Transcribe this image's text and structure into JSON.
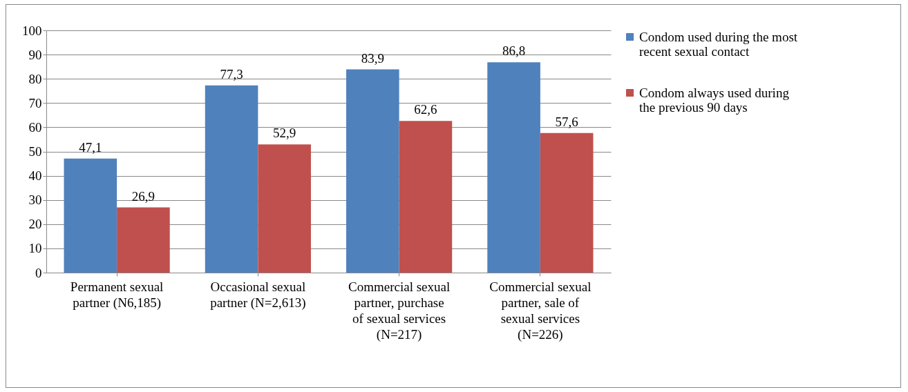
{
  "chart_data": {
    "type": "bar",
    "categories": [
      "Permanent sexual partner (N6,185)",
      "Occasional sexual partner (N=2,613)",
      "Commercial sexual partner, purchase of sexual services (N=217)",
      "Commercial sexual partner, sale of sexual services (N=226)"
    ],
    "series": [
      {
        "name": "Condom used during the most recent sexual contact",
        "color": "#4f81bd",
        "values": [
          47.1,
          77.3,
          83.9,
          86.8
        ],
        "value_labels": [
          "47,1",
          "77,3",
          "83,9",
          "86,8"
        ]
      },
      {
        "name": "Condom always used during the previous 90 days",
        "color": "#c0504d",
        "values": [
          26.9,
          52.9,
          62.6,
          57.6
        ],
        "value_labels": [
          "26,9",
          "52,9",
          "62,6",
          "57,6"
        ]
      }
    ],
    "ylim": [
      0,
      100
    ],
    "yticks": [
      0,
      10,
      20,
      30,
      40,
      50,
      60,
      70,
      80,
      90,
      100
    ],
    "grid": "y",
    "legend": "right"
  }
}
